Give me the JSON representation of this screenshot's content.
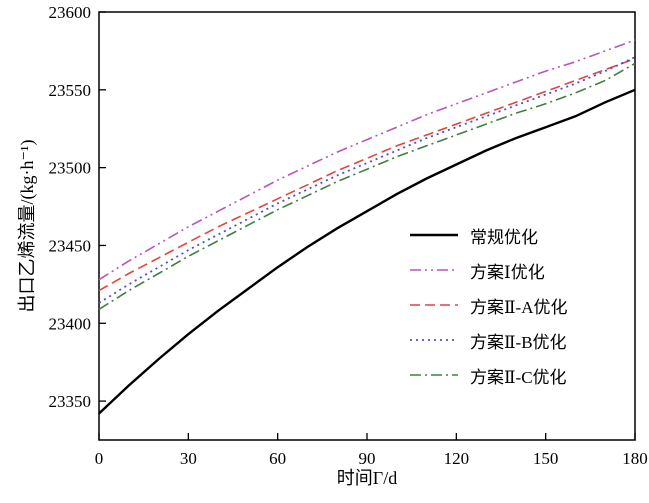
{
  "figure": {
    "background": "#ffffff",
    "frame_color": "#000000"
  },
  "chart_data": {
    "type": "line",
    "title": "",
    "xlabel": "时间Γ/d",
    "ylabel": "出口乙烯流量/(kg·h⁻¹)",
    "xlim": [
      0,
      180
    ],
    "ylim": [
      23325,
      23600
    ],
    "xticks": [
      0,
      30,
      60,
      90,
      120,
      150,
      180
    ],
    "yticks": [
      23350,
      23400,
      23450,
      23500,
      23550,
      23600
    ],
    "grid": false,
    "legend_position": "inside-right-center",
    "x": [
      0,
      10,
      20,
      30,
      40,
      50,
      60,
      70,
      80,
      90,
      100,
      110,
      120,
      130,
      140,
      150,
      160,
      170,
      180
    ],
    "series": [
      {
        "name": "常规优化",
        "color": "#000000",
        "line_style": "solid",
        "line_width": 2.4,
        "values": [
          23342,
          23360,
          23377,
          23393,
          23408,
          23422,
          23436,
          23449,
          23461,
          23472,
          23483,
          23493,
          23502,
          23511,
          23519,
          23526,
          23533,
          23542,
          23550
        ]
      },
      {
        "name": "方案Ⅰ优化",
        "color": "#ba55ba",
        "line_style": "dash-dot-dot",
        "line_width": 1.6,
        "values": [
          23428,
          23440,
          23451,
          23462,
          23472,
          23482,
          23492,
          23501,
          23510,
          23518,
          23526,
          23534,
          23541,
          23548,
          23555,
          23562,
          23568,
          23575,
          23582
        ]
      },
      {
        "name": "方案Ⅱ-A优化",
        "color": "#e0453e",
        "line_style": "dashed",
        "line_width": 1.6,
        "values": [
          23421,
          23432,
          23442,
          23452,
          23462,
          23471,
          23480,
          23489,
          23498,
          23506,
          23514,
          23521,
          23528,
          23535,
          23542,
          23549,
          23556,
          23563,
          23570
        ]
      },
      {
        "name": "方案Ⅱ-B优化",
        "color": "#4a52c8",
        "line_style": "dotted",
        "line_width": 1.8,
        "values": [
          23413,
          23425,
          23436,
          23447,
          23457,
          23467,
          23477,
          23486,
          23495,
          23503,
          23511,
          23519,
          23526,
          23533,
          23540,
          23547,
          23554,
          23562,
          23571
        ]
      },
      {
        "name": "方案Ⅱ-C优化",
        "color": "#3e8040",
        "line_style": "dash-dot",
        "line_width": 1.6,
        "values": [
          23409,
          23421,
          23432,
          23443,
          23453,
          23463,
          23473,
          23482,
          23491,
          23499,
          23507,
          23514,
          23521,
          23528,
          23535,
          23541,
          23548,
          23556,
          23567
        ]
      }
    ]
  }
}
